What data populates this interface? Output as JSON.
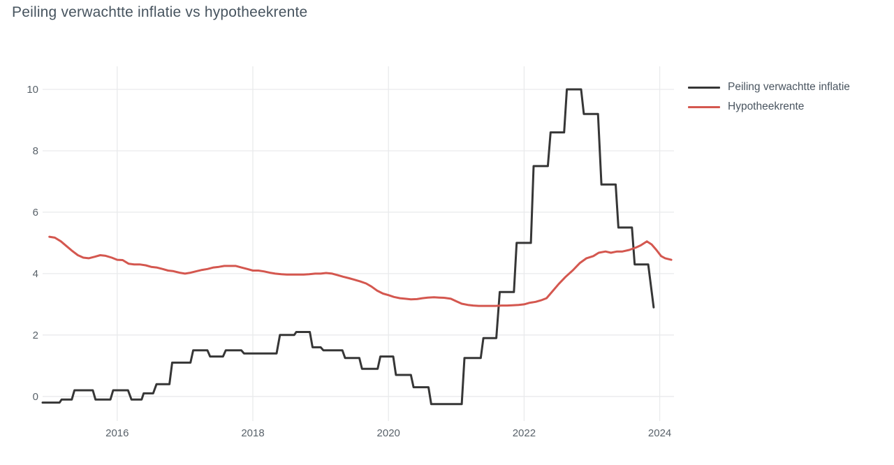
{
  "chart_data": {
    "type": "line",
    "title": "Peiling verwachtte inflatie vs hypotheekrente",
    "xlabel": "",
    "ylabel": "",
    "x_range": [
      2014.9,
      2024.21
    ],
    "y_range": [
      -0.8,
      10.75
    ],
    "x_ticks": [
      2016,
      2018,
      2020,
      2022,
      2024
    ],
    "x_tick_labels": [
      "2016",
      "2018",
      "2020",
      "2022",
      "2024"
    ],
    "y_ticks": [
      0,
      2,
      4,
      6,
      8,
      10
    ],
    "y_tick_labels": [
      "0",
      "2",
      "4",
      "6",
      "8",
      "10"
    ],
    "grid": true,
    "grid_color": "#e9eaec",
    "background_color": "#ffffff",
    "legend_position": "right",
    "series": [
      {
        "name": "Peiling verwachtte inflatie",
        "color": "#363636",
        "shape": "step",
        "points": [
          [
            2014.9,
            -0.2
          ],
          [
            2015.15,
            -0.2
          ],
          [
            2015.18,
            -0.1
          ],
          [
            2015.33,
            -0.1
          ],
          [
            2015.37,
            0.2
          ],
          [
            2015.64,
            0.2
          ],
          [
            2015.68,
            -0.1
          ],
          [
            2015.9,
            -0.1
          ],
          [
            2015.94,
            0.2
          ],
          [
            2016.16,
            0.2
          ],
          [
            2016.21,
            -0.1
          ],
          [
            2016.36,
            -0.1
          ],
          [
            2016.39,
            0.1
          ],
          [
            2016.53,
            0.1
          ],
          [
            2016.58,
            0.4
          ],
          [
            2016.77,
            0.4
          ],
          [
            2016.81,
            1.1
          ],
          [
            2017.08,
            1.1
          ],
          [
            2017.12,
            1.5
          ],
          [
            2017.33,
            1.5
          ],
          [
            2017.37,
            1.3
          ],
          [
            2017.56,
            1.3
          ],
          [
            2017.6,
            1.5
          ],
          [
            2017.83,
            1.5
          ],
          [
            2017.87,
            1.4
          ],
          [
            2018.35,
            1.4
          ],
          [
            2018.4,
            2.0
          ],
          [
            2018.61,
            2.0
          ],
          [
            2018.64,
            2.1
          ],
          [
            2018.84,
            2.1
          ],
          [
            2018.88,
            1.6
          ],
          [
            2019.0,
            1.6
          ],
          [
            2019.04,
            1.5
          ],
          [
            2019.32,
            1.5
          ],
          [
            2019.36,
            1.25
          ],
          [
            2019.57,
            1.25
          ],
          [
            2019.61,
            0.9
          ],
          [
            2019.84,
            0.9
          ],
          [
            2019.88,
            1.3
          ],
          [
            2020.07,
            1.3
          ],
          [
            2020.11,
            0.7
          ],
          [
            2020.33,
            0.7
          ],
          [
            2020.37,
            0.3
          ],
          [
            2020.59,
            0.3
          ],
          [
            2020.63,
            -0.25
          ],
          [
            2021.08,
            -0.25
          ],
          [
            2021.12,
            1.25
          ],
          [
            2021.36,
            1.25
          ],
          [
            2021.4,
            1.9
          ],
          [
            2021.59,
            1.9
          ],
          [
            2021.64,
            3.4
          ],
          [
            2021.85,
            3.4
          ],
          [
            2021.89,
            5.0
          ],
          [
            2022.1,
            5.0
          ],
          [
            2022.14,
            7.5
          ],
          [
            2022.35,
            7.5
          ],
          [
            2022.39,
            8.6
          ],
          [
            2022.59,
            8.6
          ],
          [
            2022.63,
            10.0
          ],
          [
            2022.84,
            10.0
          ],
          [
            2022.88,
            9.2
          ],
          [
            2023.09,
            9.2
          ],
          [
            2023.14,
            6.9
          ],
          [
            2023.35,
            6.9
          ],
          [
            2023.39,
            5.5
          ],
          [
            2023.59,
            5.5
          ],
          [
            2023.63,
            4.3
          ],
          [
            2023.83,
            4.3
          ],
          [
            2023.91,
            2.9
          ]
        ]
      },
      {
        "name": "Hypotheekrente",
        "color": "#d4574f",
        "shape": "smooth",
        "points": [
          [
            2015.0,
            5.2
          ],
          [
            2015.08,
            5.17
          ],
          [
            2015.17,
            5.05
          ],
          [
            2015.25,
            4.9
          ],
          [
            2015.33,
            4.75
          ],
          [
            2015.42,
            4.6
          ],
          [
            2015.5,
            4.52
          ],
          [
            2015.58,
            4.5
          ],
          [
            2015.67,
            4.55
          ],
          [
            2015.75,
            4.6
          ],
          [
            2015.83,
            4.58
          ],
          [
            2015.92,
            4.52
          ],
          [
            2016.0,
            4.45
          ],
          [
            2016.08,
            4.44
          ],
          [
            2016.17,
            4.32
          ],
          [
            2016.25,
            4.3
          ],
          [
            2016.33,
            4.3
          ],
          [
            2016.42,
            4.27
          ],
          [
            2016.5,
            4.22
          ],
          [
            2016.58,
            4.2
          ],
          [
            2016.67,
            4.15
          ],
          [
            2016.75,
            4.1
          ],
          [
            2016.83,
            4.08
          ],
          [
            2016.92,
            4.03
          ],
          [
            2017.0,
            4.0
          ],
          [
            2017.08,
            4.03
          ],
          [
            2017.17,
            4.08
          ],
          [
            2017.25,
            4.12
          ],
          [
            2017.33,
            4.15
          ],
          [
            2017.42,
            4.2
          ],
          [
            2017.5,
            4.22
          ],
          [
            2017.58,
            4.25
          ],
          [
            2017.67,
            4.25
          ],
          [
            2017.75,
            4.25
          ],
          [
            2017.83,
            4.2
          ],
          [
            2017.92,
            4.15
          ],
          [
            2018.0,
            4.1
          ],
          [
            2018.08,
            4.1
          ],
          [
            2018.17,
            4.07
          ],
          [
            2018.25,
            4.03
          ],
          [
            2018.33,
            4.0
          ],
          [
            2018.42,
            3.98
          ],
          [
            2018.5,
            3.97
          ],
          [
            2018.58,
            3.97
          ],
          [
            2018.67,
            3.97
          ],
          [
            2018.75,
            3.97
          ],
          [
            2018.83,
            3.98
          ],
          [
            2018.92,
            4.0
          ],
          [
            2019.0,
            4.0
          ],
          [
            2019.08,
            4.02
          ],
          [
            2019.17,
            4.0
          ],
          [
            2019.25,
            3.95
          ],
          [
            2019.33,
            3.9
          ],
          [
            2019.42,
            3.85
          ],
          [
            2019.5,
            3.8
          ],
          [
            2019.58,
            3.75
          ],
          [
            2019.67,
            3.68
          ],
          [
            2019.75,
            3.58
          ],
          [
            2019.83,
            3.45
          ],
          [
            2019.92,
            3.35
          ],
          [
            2020.0,
            3.3
          ],
          [
            2020.08,
            3.24
          ],
          [
            2020.17,
            3.2
          ],
          [
            2020.25,
            3.18
          ],
          [
            2020.33,
            3.16
          ],
          [
            2020.42,
            3.17
          ],
          [
            2020.5,
            3.2
          ],
          [
            2020.58,
            3.22
          ],
          [
            2020.67,
            3.23
          ],
          [
            2020.75,
            3.22
          ],
          [
            2020.83,
            3.21
          ],
          [
            2020.92,
            3.18
          ],
          [
            2021.0,
            3.1
          ],
          [
            2021.08,
            3.02
          ],
          [
            2021.17,
            2.98
          ],
          [
            2021.25,
            2.96
          ],
          [
            2021.33,
            2.95
          ],
          [
            2021.42,
            2.95
          ],
          [
            2021.5,
            2.95
          ],
          [
            2021.58,
            2.95
          ],
          [
            2021.67,
            2.96
          ],
          [
            2021.75,
            2.96
          ],
          [
            2021.83,
            2.97
          ],
          [
            2021.92,
            2.98
          ],
          [
            2022.0,
            3.0
          ],
          [
            2022.08,
            3.05
          ],
          [
            2022.17,
            3.08
          ],
          [
            2022.25,
            3.13
          ],
          [
            2022.33,
            3.2
          ],
          [
            2022.42,
            3.43
          ],
          [
            2022.51,
            3.66
          ],
          [
            2022.61,
            3.89
          ],
          [
            2022.72,
            4.11
          ],
          [
            2022.82,
            4.34
          ],
          [
            2022.92,
            4.5
          ],
          [
            2023.02,
            4.57
          ],
          [
            2023.1,
            4.68
          ],
          [
            2023.2,
            4.72
          ],
          [
            2023.28,
            4.68
          ],
          [
            2023.37,
            4.72
          ],
          [
            2023.45,
            4.72
          ],
          [
            2023.55,
            4.77
          ],
          [
            2023.65,
            4.85
          ],
          [
            2023.72,
            4.92
          ],
          [
            2023.81,
            5.05
          ],
          [
            2023.88,
            4.95
          ],
          [
            2023.95,
            4.77
          ],
          [
            2024.02,
            4.57
          ],
          [
            2024.08,
            4.5
          ],
          [
            2024.17,
            4.45
          ]
        ]
      }
    ]
  }
}
